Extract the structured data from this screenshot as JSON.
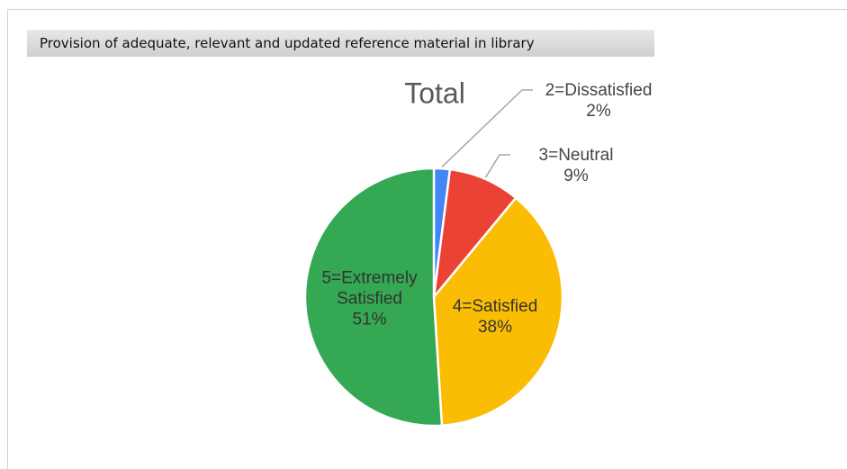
{
  "header": {
    "title": "Provision of adequate, relevant and updated reference material in library"
  },
  "chart_data": {
    "type": "pie",
    "title": "Total",
    "categories": [
      "2=Dissatisfied",
      "3=Neutral",
      "4=Satisfied",
      "5=Extremely Satisfied"
    ],
    "values": [
      2,
      9,
      38,
      51
    ],
    "value_labels": [
      "2%",
      "9%",
      "38%",
      "51%"
    ],
    "colors": [
      "#4285f4",
      "#ea4335",
      "#fbbc04",
      "#34a853"
    ]
  }
}
